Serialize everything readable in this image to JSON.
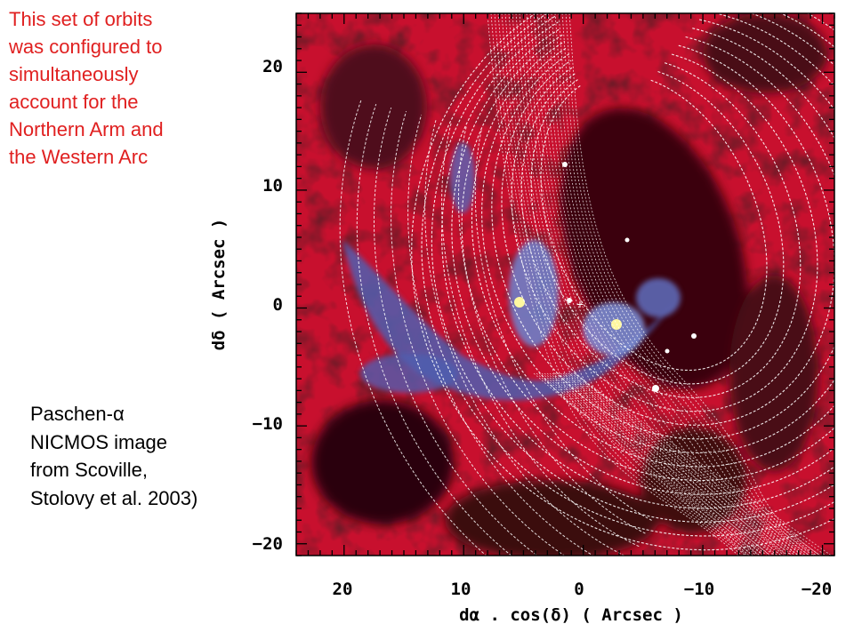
{
  "annotations": {
    "top_lines": [
      "This set of orbits",
      "was configured to",
      "simultaneously",
      "account for the",
      "Northern Arm and",
      "the Western Arc"
    ],
    "bottom_lines": [
      "Paschen-α",
      "NICMOS image",
      "from Scoville,",
      "Stolovy et al. 2003)"
    ]
  },
  "colors": {
    "caption_red": "#e02020",
    "image_red": "#c8102e",
    "image_dark": "#2a0508",
    "image_blue": "#5a64b4",
    "orbit_white": "#ffffff"
  },
  "chart_data": {
    "type": "scatter",
    "title": "",
    "xlabel": "dα . cos(δ) ( Arcsec )",
    "ylabel": "dδ ( Arcsec )",
    "xlim": [
      24,
      -21
    ],
    "ylim": [
      -21,
      25
    ],
    "xticks": [
      20,
      10,
      0,
      -10,
      -20
    ],
    "xtick_labels": [
      "20",
      "10",
      "0",
      "−10",
      "−20"
    ],
    "yticks": [
      20,
      10,
      0,
      -10,
      -20
    ],
    "ytick_labels": [
      "20",
      "10",
      "0",
      "−10",
      "−20"
    ],
    "background": "Paschen-α NICMOS image",
    "center_marker": {
      "x": 0,
      "y": 0,
      "symbol": "+"
    },
    "grid": false
  }
}
